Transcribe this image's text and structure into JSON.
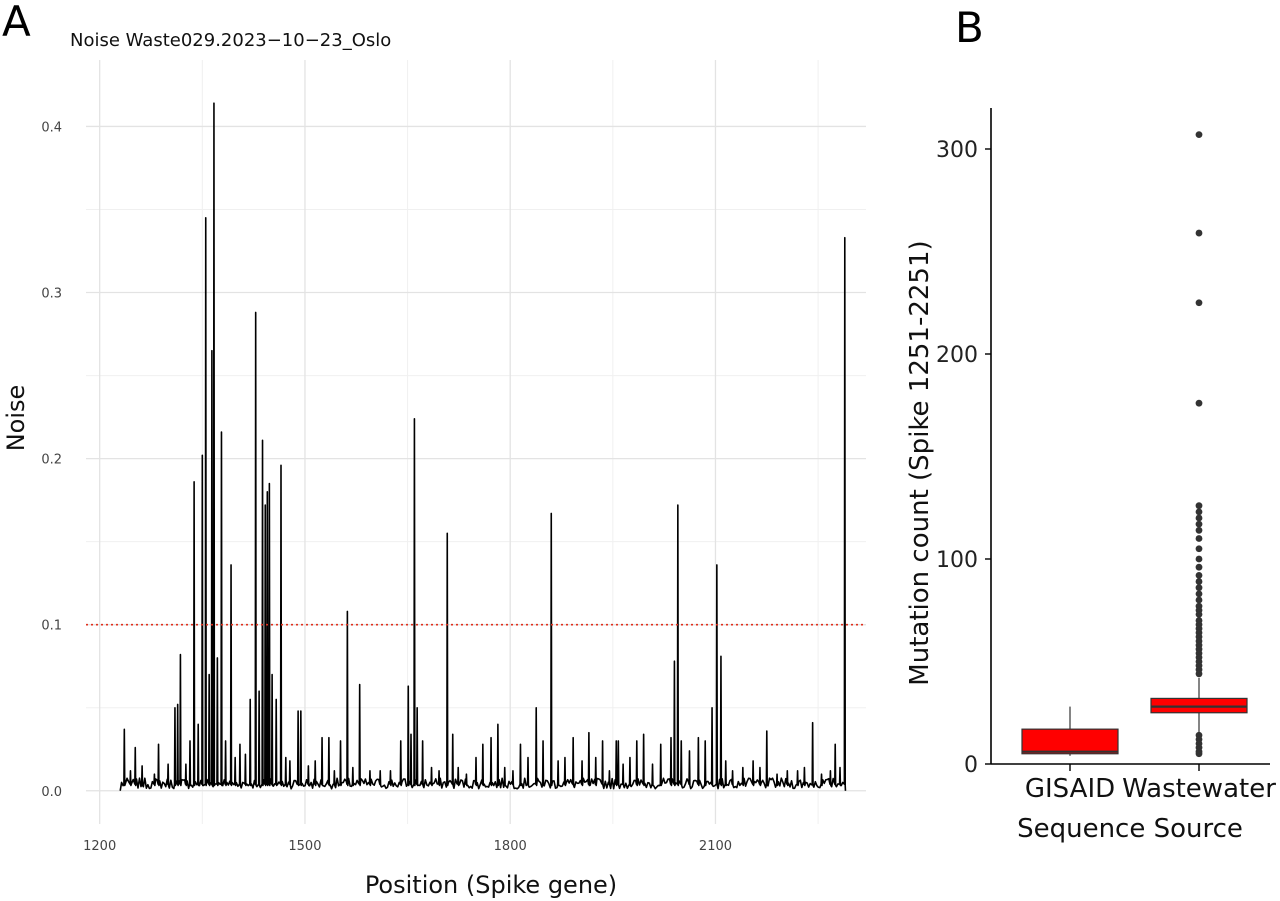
{
  "chart_data": [
    {
      "panel": "A",
      "type": "line",
      "title": "Noise Waste029.2023−10−23_Oslo",
      "xlabel": "Position (Spike gene)",
      "ylabel": "Noise",
      "xlim": [
        1180,
        2320
      ],
      "ylim": [
        -0.02,
        0.44
      ],
      "xticks": [
        1200,
        1500,
        1800,
        2100
      ],
      "yticks": [
        0.0,
        0.1,
        0.2,
        0.3,
        0.4
      ],
      "xtick_labels": [
        "1200",
        "1500",
        "1800",
        "2100"
      ],
      "ytick_labels": [
        "0.0",
        "0.1",
        "0.2",
        "0.3",
        "0.4"
      ],
      "grid": true,
      "threshold": {
        "value": 0.1,
        "color": "#e0301e",
        "style": "dotted"
      },
      "line_color": "#000000",
      "x_range": [
        1230,
        2290
      ],
      "baseline": 0.004,
      "spikes": [
        [
          1236,
          0.037
        ],
        [
          1245,
          0.012
        ],
        [
          1252,
          0.026
        ],
        [
          1262,
          0.015
        ],
        [
          1280,
          0.01
        ],
        [
          1286,
          0.028
        ],
        [
          1300,
          0.016
        ],
        [
          1310,
          0.05
        ],
        [
          1314,
          0.052
        ],
        [
          1318,
          0.082
        ],
        [
          1326,
          0.016
        ],
        [
          1332,
          0.03
        ],
        [
          1338,
          0.186
        ],
        [
          1344,
          0.04
        ],
        [
          1350,
          0.202
        ],
        [
          1355,
          0.345
        ],
        [
          1360,
          0.07
        ],
        [
          1364,
          0.265
        ],
        [
          1367,
          0.414
        ],
        [
          1372,
          0.08
        ],
        [
          1378,
          0.216
        ],
        [
          1384,
          0.03
        ],
        [
          1392,
          0.136
        ],
        [
          1398,
          0.02
        ],
        [
          1405,
          0.028
        ],
        [
          1413,
          0.022
        ],
        [
          1420,
          0.055
        ],
        [
          1428,
          0.288
        ],
        [
          1433,
          0.06
        ],
        [
          1438,
          0.211
        ],
        [
          1442,
          0.172
        ],
        [
          1445,
          0.18
        ],
        [
          1448,
          0.185
        ],
        [
          1452,
          0.07
        ],
        [
          1458,
          0.055
        ],
        [
          1465,
          0.196
        ],
        [
          1472,
          0.02
        ],
        [
          1478,
          0.018
        ],
        [
          1490,
          0.048
        ],
        [
          1494,
          0.048
        ],
        [
          1505,
          0.015
        ],
        [
          1515,
          0.018
        ],
        [
          1525,
          0.032
        ],
        [
          1535,
          0.032
        ],
        [
          1543,
          0.012
        ],
        [
          1552,
          0.03
        ],
        [
          1562,
          0.108
        ],
        [
          1570,
          0.014
        ],
        [
          1580,
          0.064
        ],
        [
          1595,
          0.012
        ],
        [
          1610,
          0.012
        ],
        [
          1625,
          0.012
        ],
        [
          1640,
          0.03
        ],
        [
          1651,
          0.063
        ],
        [
          1655,
          0.034
        ],
        [
          1660,
          0.224
        ],
        [
          1664,
          0.05
        ],
        [
          1672,
          0.03
        ],
        [
          1685,
          0.014
        ],
        [
          1696,
          0.012
        ],
        [
          1708,
          0.155
        ],
        [
          1716,
          0.034
        ],
        [
          1724,
          0.014
        ],
        [
          1736,
          0.01
        ],
        [
          1750,
          0.02
        ],
        [
          1760,
          0.028
        ],
        [
          1772,
          0.032
        ],
        [
          1782,
          0.04
        ],
        [
          1792,
          0.014
        ],
        [
          1804,
          0.012
        ],
        [
          1815,
          0.028
        ],
        [
          1826,
          0.02
        ],
        [
          1838,
          0.05
        ],
        [
          1848,
          0.03
        ],
        [
          1860,
          0.167
        ],
        [
          1870,
          0.018
        ],
        [
          1880,
          0.02
        ],
        [
          1892,
          0.032
        ],
        [
          1905,
          0.018
        ],
        [
          1915,
          0.035
        ],
        [
          1925,
          0.02
        ],
        [
          1935,
          0.03
        ],
        [
          1945,
          0.012
        ],
        [
          1955,
          0.03
        ],
        [
          1958,
          0.03
        ],
        [
          1965,
          0.016
        ],
        [
          1975,
          0.02
        ],
        [
          1985,
          0.03
        ],
        [
          1995,
          0.034
        ],
        [
          2008,
          0.016
        ],
        [
          2020,
          0.028
        ],
        [
          2035,
          0.032
        ],
        [
          2040,
          0.078
        ],
        [
          2045,
          0.172
        ],
        [
          2050,
          0.03
        ],
        [
          2062,
          0.024
        ],
        [
          2075,
          0.032
        ],
        [
          2085,
          0.03
        ],
        [
          2095,
          0.05
        ],
        [
          2102,
          0.136
        ],
        [
          2108,
          0.081
        ],
        [
          2115,
          0.018
        ],
        [
          2125,
          0.012
        ],
        [
          2140,
          0.014
        ],
        [
          2155,
          0.018
        ],
        [
          2165,
          0.014
        ],
        [
          2175,
          0.036
        ],
        [
          2190,
          0.01
        ],
        [
          2205,
          0.012
        ],
        [
          2220,
          0.012
        ],
        [
          2230,
          0.014
        ],
        [
          2242,
          0.041
        ],
        [
          2255,
          0.01
        ],
        [
          2268,
          0.012
        ],
        [
          2275,
          0.028
        ],
        [
          2282,
          0.014
        ],
        [
          2289,
          0.333
        ]
      ]
    },
    {
      "panel": "B",
      "type": "box",
      "xlabel": "Sequence Source",
      "ylabel": "Mutation count (Spike 1251-2251)",
      "categories": [
        "GISAID",
        "Wastewater"
      ],
      "ylim": [
        0,
        320
      ],
      "yticks": [
        0,
        100,
        200,
        300
      ],
      "ytick_labels": [
        "0",
        "100",
        "200",
        "300"
      ],
      "box_fill": "#ff0000",
      "grid": false,
      "boxes": [
        {
          "category": "GISAID",
          "whisker_low": 4,
          "q1": 5,
          "median": 6,
          "q3": 17,
          "whisker_high": 28,
          "outliers": []
        },
        {
          "category": "Wastewater",
          "whisker_low": 4,
          "q1": 25,
          "median": 28,
          "q3": 32,
          "whisker_high": 42,
          "outliers": [
            307,
            259,
            225,
            176,
            126,
            123,
            120,
            117,
            114,
            110,
            105,
            100,
            96,
            92,
            89,
            86,
            83,
            80,
            77,
            75,
            73,
            70,
            68,
            66,
            64,
            62,
            60,
            58,
            56,
            54,
            52,
            50,
            48,
            46,
            44,
            14,
            12,
            10,
            8,
            6,
            5
          ]
        }
      ]
    }
  ],
  "panels": {
    "a": "A",
    "b": "B"
  }
}
